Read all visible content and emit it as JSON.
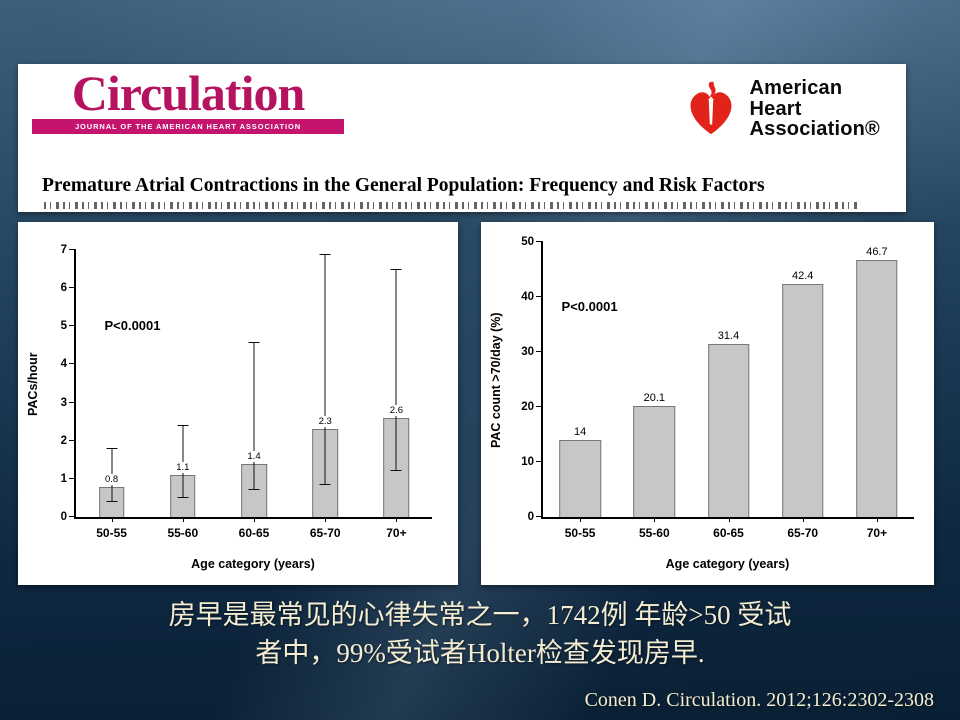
{
  "header": {
    "journal_logo": "Circulation",
    "journal_tagline": "Journal of the American Heart Association",
    "aha": {
      "line1": "American",
      "line2": "Heart",
      "line3": "Association®"
    },
    "paper_title": "Premature Atrial Contractions in the General Population: Frequency and Risk Factors"
  },
  "chart_data": [
    {
      "type": "bar",
      "categories": [
        "50-55",
        "55-60",
        "60-65",
        "65-70",
        "70+"
      ],
      "values": [
        0.8,
        1.1,
        1.4,
        2.3,
        2.6
      ],
      "value_labels": [
        "0.8",
        "1.1",
        "1.4",
        "2.3",
        "2.6"
      ],
      "errors": [
        [
          0.4,
          1.8
        ],
        [
          0.5,
          2.4
        ],
        [
          0.7,
          4.6
        ],
        [
          0.85,
          6.9
        ],
        [
          1.2,
          6.5
        ]
      ],
      "xlabel": "Age category (years)",
      "ylabel": "PACs/hour",
      "ylim": [
        0,
        7
      ],
      "yticks": [
        0,
        1,
        2,
        3,
        4,
        5,
        6,
        7
      ],
      "p_value": "P<0.0001",
      "grid": false,
      "legend": false
    },
    {
      "type": "bar",
      "categories": [
        "50-55",
        "55-60",
        "60-65",
        "65-70",
        "70+"
      ],
      "values": [
        14,
        20.1,
        31.4,
        42.4,
        46.7
      ],
      "value_labels": [
        "14",
        "20.1",
        "31.4",
        "42.4",
        "46.7"
      ],
      "xlabel": "Age category (years)",
      "ylabel": "PAC count >70/day (%)",
      "ylim": [
        0,
        50
      ],
      "yticks": [
        0,
        10,
        20,
        30,
        40,
        50
      ],
      "p_value": "P<0.0001",
      "grid": false,
      "legend": false
    }
  ],
  "caption": {
    "line1": "房早是最常见的心律失常之一，1742例 年龄>50 受试",
    "line2": "者中，99%受试者Holter检查发现房早."
  },
  "citation": "Conen D. Circulation. 2012;126:2302-2308"
}
